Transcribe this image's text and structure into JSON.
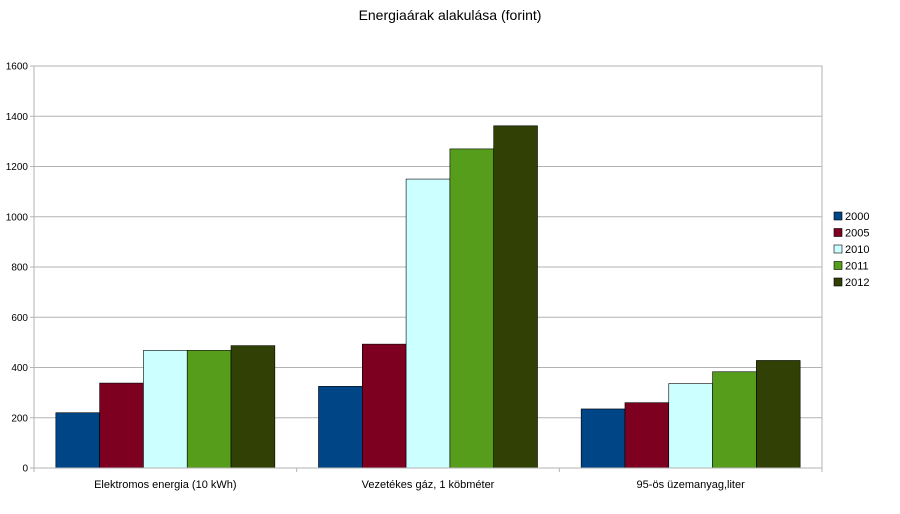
{
  "chart_data": {
    "type": "bar",
    "title": "Energiaárak alakulása (forint)",
    "xlabel": "",
    "ylabel": "",
    "categories": [
      "Elektromos energia (10 kWh)",
      "Vezetékes gáz, 1 köbméter",
      "95-ös üzemanyag,liter"
    ],
    "ylim": [
      0,
      1600
    ],
    "yticks": [
      0,
      200,
      400,
      600,
      800,
      1000,
      1200,
      1400,
      1600
    ],
    "grid": true,
    "legend_position": "right",
    "series": [
      {
        "name": "2000",
        "color": "#004586",
        "values": [
          220,
          325,
          235
        ]
      },
      {
        "name": "2005",
        "color": "#7e0021",
        "values": [
          338,
          493,
          260
        ]
      },
      {
        "name": "2010",
        "color": "#ccffff",
        "values": [
          468,
          1150,
          336
        ]
      },
      {
        "name": "2011",
        "color": "#579d1c",
        "values": [
          468,
          1270,
          383
        ]
      },
      {
        "name": "2012",
        "color": "#314004",
        "values": [
          487,
          1362,
          428
        ]
      }
    ]
  }
}
